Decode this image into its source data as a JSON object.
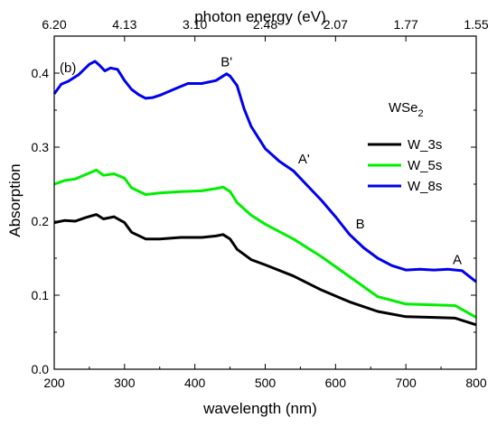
{
  "chart_data": {
    "type": "line",
    "panel_label": "(b)",
    "xlabel": "wavelength (nm)",
    "ylabel": "Absorption",
    "top_axis_label": "photon energy (eV)",
    "xlim": [
      200,
      800
    ],
    "ylim": [
      0.0,
      0.45
    ],
    "x_ticks": [
      "200",
      "300",
      "400",
      "500",
      "600",
      "700",
      "800"
    ],
    "y_ticks": [
      "0.0",
      "0.1",
      "0.2",
      "0.3",
      "0.4"
    ],
    "top_ticks": [
      {
        "label": "6.20",
        "wavelength": 200
      },
      {
        "label": "4.13",
        "wavelength": 300
      },
      {
        "label": "3.10",
        "wavelength": 400
      },
      {
        "label": "2.48",
        "wavelength": 500
      },
      {
        "label": "2.07",
        "wavelength": 600
      },
      {
        "label": "1.77",
        "wavelength": 700
      },
      {
        "label": "1.55",
        "wavelength": 800
      }
    ],
    "legend": {
      "title_main": "WSe",
      "title_sub": "2",
      "placement": "right"
    },
    "series": [
      {
        "name": "W_3s",
        "color": "#000000",
        "x": [
          200,
          215,
          230,
          245,
          260,
          270,
          285,
          300,
          310,
          330,
          350,
          380,
          410,
          430,
          440,
          450,
          460,
          480,
          500,
          540,
          580,
          620,
          660,
          700,
          740,
          770,
          800
        ],
        "y": [
          0.198,
          0.201,
          0.2,
          0.205,
          0.209,
          0.203,
          0.206,
          0.198,
          0.185,
          0.176,
          0.176,
          0.178,
          0.178,
          0.18,
          0.182,
          0.176,
          0.162,
          0.148,
          0.141,
          0.126,
          0.107,
          0.091,
          0.078,
          0.071,
          0.07,
          0.069,
          0.06
        ]
      },
      {
        "name": "W_5s",
        "color": "#00ee00",
        "x": [
          200,
          215,
          230,
          245,
          260,
          270,
          285,
          300,
          310,
          330,
          350,
          380,
          410,
          430,
          440,
          450,
          460,
          480,
          500,
          540,
          580,
          620,
          660,
          700,
          740,
          770,
          800
        ],
        "y": [
          0.25,
          0.255,
          0.257,
          0.263,
          0.269,
          0.262,
          0.264,
          0.258,
          0.245,
          0.236,
          0.238,
          0.24,
          0.241,
          0.244,
          0.246,
          0.24,
          0.225,
          0.208,
          0.196,
          0.176,
          0.152,
          0.125,
          0.098,
          0.088,
          0.087,
          0.086,
          0.07
        ]
      },
      {
        "name": "W_8s",
        "color": "#0000ee",
        "x": [
          200,
          210,
          220,
          235,
          250,
          258,
          265,
          272,
          280,
          290,
          300,
          310,
          320,
          330,
          340,
          350,
          370,
          390,
          410,
          430,
          440,
          445,
          450,
          460,
          470,
          480,
          500,
          520,
          540,
          560,
          580,
          600,
          620,
          640,
          660,
          680,
          700,
          720,
          740,
          760,
          780,
          800
        ],
        "y": [
          0.372,
          0.385,
          0.389,
          0.398,
          0.412,
          0.416,
          0.41,
          0.403,
          0.407,
          0.405,
          0.39,
          0.378,
          0.371,
          0.366,
          0.367,
          0.37,
          0.378,
          0.386,
          0.386,
          0.39,
          0.396,
          0.399,
          0.396,
          0.383,
          0.352,
          0.328,
          0.298,
          0.281,
          0.268,
          0.248,
          0.228,
          0.206,
          0.182,
          0.164,
          0.15,
          0.14,
          0.134,
          0.135,
          0.134,
          0.135,
          0.133,
          0.118
        ]
      }
    ],
    "annotations": [
      {
        "text": "B'",
        "x": 445,
        "y": 0.409
      },
      {
        "text": "A'",
        "x": 555,
        "y": 0.278
      },
      {
        "text": "B",
        "x": 635,
        "y": 0.19
      },
      {
        "text": "A",
        "x": 773,
        "y": 0.142
      }
    ]
  }
}
